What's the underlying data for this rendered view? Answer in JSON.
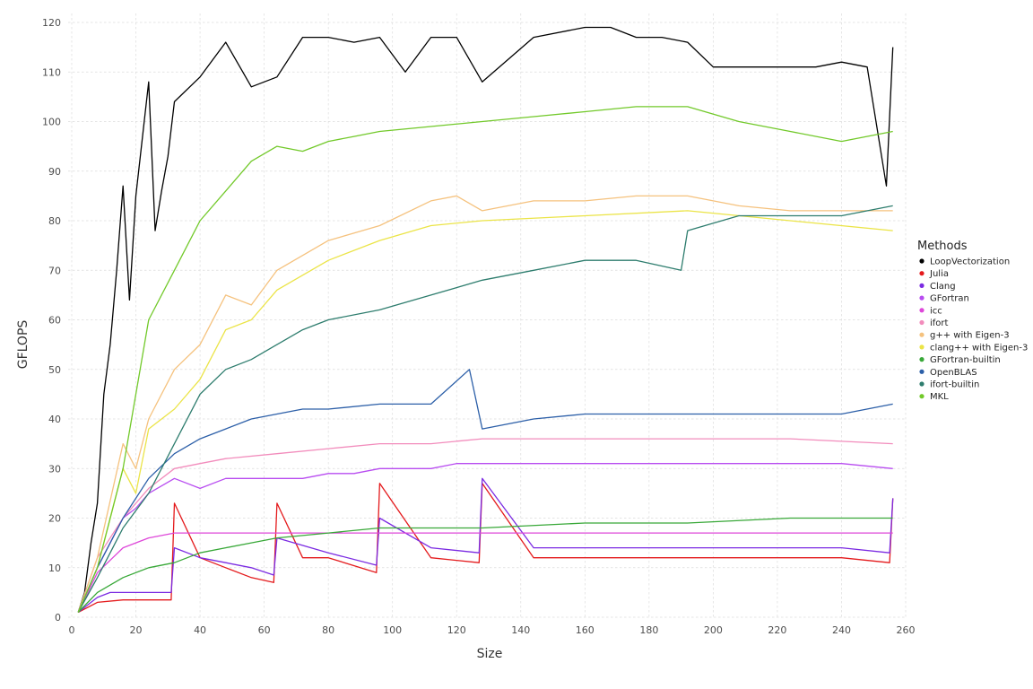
{
  "chart_data": {
    "type": "line",
    "title": "",
    "xlabel": "Size",
    "ylabel": "GFLOPS",
    "xlim": [
      0,
      260
    ],
    "ylim": [
      0,
      120
    ],
    "x_ticks": [
      0,
      20,
      40,
      60,
      80,
      100,
      120,
      140,
      160,
      180,
      200,
      220,
      240,
      260
    ],
    "y_ticks": [
      0,
      10,
      20,
      30,
      40,
      50,
      60,
      70,
      80,
      90,
      100,
      110,
      120
    ],
    "grid": true,
    "legend": {
      "title": "Methods",
      "position": "right"
    },
    "series": [
      {
        "name": "LoopVectorization",
        "color": "#000000",
        "x": [
          2,
          4,
          6,
          8,
          10,
          12,
          14,
          16,
          18,
          20,
          24,
          26,
          28,
          30,
          32,
          40,
          48,
          56,
          64,
          72,
          80,
          88,
          96,
          104,
          112,
          120,
          128,
          144,
          160,
          168,
          176,
          184,
          192,
          200,
          208,
          216,
          224,
          232,
          240,
          248,
          254,
          256
        ],
        "y": [
          1,
          5,
          15,
          23,
          45,
          55,
          70,
          87,
          64,
          85,
          108,
          78,
          86,
          93,
          104,
          109,
          116,
          107,
          109,
          117,
          117,
          116,
          117,
          110,
          117,
          117,
          108,
          117,
          119,
          119,
          117,
          117,
          116,
          111,
          111,
          111,
          111,
          111,
          112,
          111,
          87,
          115
        ]
      },
      {
        "name": "Julia",
        "color": "#e41a1c",
        "x": [
          2,
          8,
          16,
          24,
          31,
          32,
          40,
          48,
          56,
          63,
          64,
          72,
          80,
          95,
          96,
          112,
          127,
          128,
          144,
          160,
          176,
          192,
          208,
          224,
          240,
          255,
          256
        ],
        "y": [
          1,
          3,
          3.5,
          3.5,
          3.5,
          23,
          12,
          10,
          8,
          7,
          23,
          12,
          12,
          9,
          27,
          12,
          11,
          27,
          12,
          12,
          12,
          12,
          12,
          12,
          12,
          11,
          24
        ]
      },
      {
        "name": "Clang",
        "color": "#7b2be2",
        "x": [
          2,
          8,
          12,
          16,
          24,
          31,
          32,
          40,
          48,
          56,
          63,
          64,
          80,
          95,
          96,
          112,
          127,
          128,
          144,
          160,
          176,
          192,
          208,
          224,
          240,
          255,
          256
        ],
        "y": [
          1,
          4,
          5,
          5,
          5,
          5,
          14,
          12,
          11,
          10,
          8.5,
          16,
          13,
          10.5,
          20,
          14,
          13,
          28,
          14,
          14,
          14,
          14,
          14,
          14,
          14,
          13,
          24
        ]
      },
      {
        "name": "GFortran",
        "color": "#b84cf0",
        "x": [
          2,
          8,
          12,
          16,
          20,
          24,
          32,
          40,
          48,
          56,
          64,
          72,
          80,
          88,
          96,
          104,
          112,
          120,
          128,
          144,
          160,
          176,
          192,
          208,
          224,
          240,
          256
        ],
        "y": [
          1,
          10,
          15,
          20,
          22,
          25,
          28,
          26,
          28,
          28,
          28,
          28,
          29,
          29,
          30,
          30,
          30,
          31,
          31,
          31,
          31,
          31,
          31,
          31,
          31,
          31,
          30
        ]
      },
      {
        "name": "icc",
        "color": "#de47d9",
        "x": [
          2,
          8,
          16,
          24,
          32,
          40,
          48,
          64,
          80,
          96,
          112,
          128,
          160,
          192,
          224,
          256
        ],
        "y": [
          1,
          9,
          14,
          16,
          17,
          17,
          17,
          17,
          17,
          17,
          17,
          17,
          17,
          17,
          17,
          17
        ]
      },
      {
        "name": "ifort",
        "color": "#f28cbc",
        "x": [
          2,
          8,
          16,
          24,
          32,
          40,
          48,
          64,
          80,
          96,
          112,
          128,
          160,
          192,
          224,
          256
        ],
        "y": [
          1,
          12,
          20,
          26,
          30,
          31,
          32,
          33,
          34,
          35,
          35,
          36,
          36,
          36,
          36,
          35
        ]
      },
      {
        "name": "g++ with Eigen-3",
        "color": "#f5c27e",
        "x": [
          2,
          8,
          16,
          20,
          24,
          32,
          40,
          48,
          56,
          64,
          80,
          96,
          112,
          120,
          128,
          144,
          160,
          176,
          192,
          208,
          224,
          240,
          256
        ],
        "y": [
          1,
          12,
          35,
          30,
          40,
          50,
          55,
          65,
          63,
          70,
          76,
          79,
          84,
          85,
          82,
          84,
          84,
          85,
          85,
          83,
          82,
          82,
          82
        ]
      },
      {
        "name": "clang++ with Eigen-3",
        "color": "#ebe447",
        "x": [
          2,
          8,
          16,
          20,
          24,
          32,
          40,
          48,
          56,
          64,
          80,
          96,
          112,
          128,
          160,
          192,
          224,
          256
        ],
        "y": [
          1,
          10,
          30,
          25,
          38,
          42,
          48,
          58,
          60,
          66,
          72,
          76,
          79,
          80,
          81,
          82,
          80,
          78
        ]
      },
      {
        "name": "GFortran-builtin",
        "color": "#38a838",
        "x": [
          2,
          8,
          16,
          24,
          32,
          40,
          48,
          56,
          64,
          80,
          96,
          128,
          160,
          192,
          224,
          256
        ],
        "y": [
          1,
          5,
          8,
          10,
          11,
          13,
          14,
          15,
          16,
          17,
          18,
          18,
          19,
          19,
          20,
          20
        ]
      },
      {
        "name": "OpenBLAS",
        "color": "#2c5fa8",
        "x": [
          2,
          8,
          16,
          24,
          32,
          40,
          48,
          56,
          64,
          72,
          80,
          96,
          112,
          124,
          128,
          144,
          160,
          176,
          192,
          208,
          224,
          240,
          256
        ],
        "y": [
          1,
          10,
          20,
          28,
          33,
          36,
          38,
          40,
          41,
          42,
          42,
          43,
          43,
          50,
          38,
          40,
          41,
          41,
          41,
          41,
          41,
          41,
          43
        ]
      },
      {
        "name": "ifort-builtin",
        "color": "#2e7d6e",
        "x": [
          2,
          8,
          16,
          24,
          32,
          40,
          48,
          56,
          64,
          72,
          80,
          96,
          112,
          128,
          144,
          160,
          176,
          190,
          192,
          208,
          224,
          240,
          256
        ],
        "y": [
          1,
          8,
          18,
          25,
          35,
          45,
          50,
          52,
          55,
          58,
          60,
          62,
          65,
          68,
          70,
          72,
          72,
          70,
          78,
          81,
          81,
          81,
          83
        ]
      },
      {
        "name": "MKL",
        "color": "#72c92a",
        "x": [
          2,
          8,
          16,
          24,
          32,
          40,
          48,
          56,
          64,
          72,
          80,
          88,
          96,
          112,
          128,
          144,
          160,
          176,
          192,
          208,
          224,
          240,
          256
        ],
        "y": [
          1,
          10,
          30,
          60,
          70,
          80,
          86,
          92,
          95,
          94,
          96,
          97,
          98,
          99,
          100,
          101,
          102,
          103,
          103,
          100,
          98,
          96,
          98
        ]
      }
    ]
  }
}
